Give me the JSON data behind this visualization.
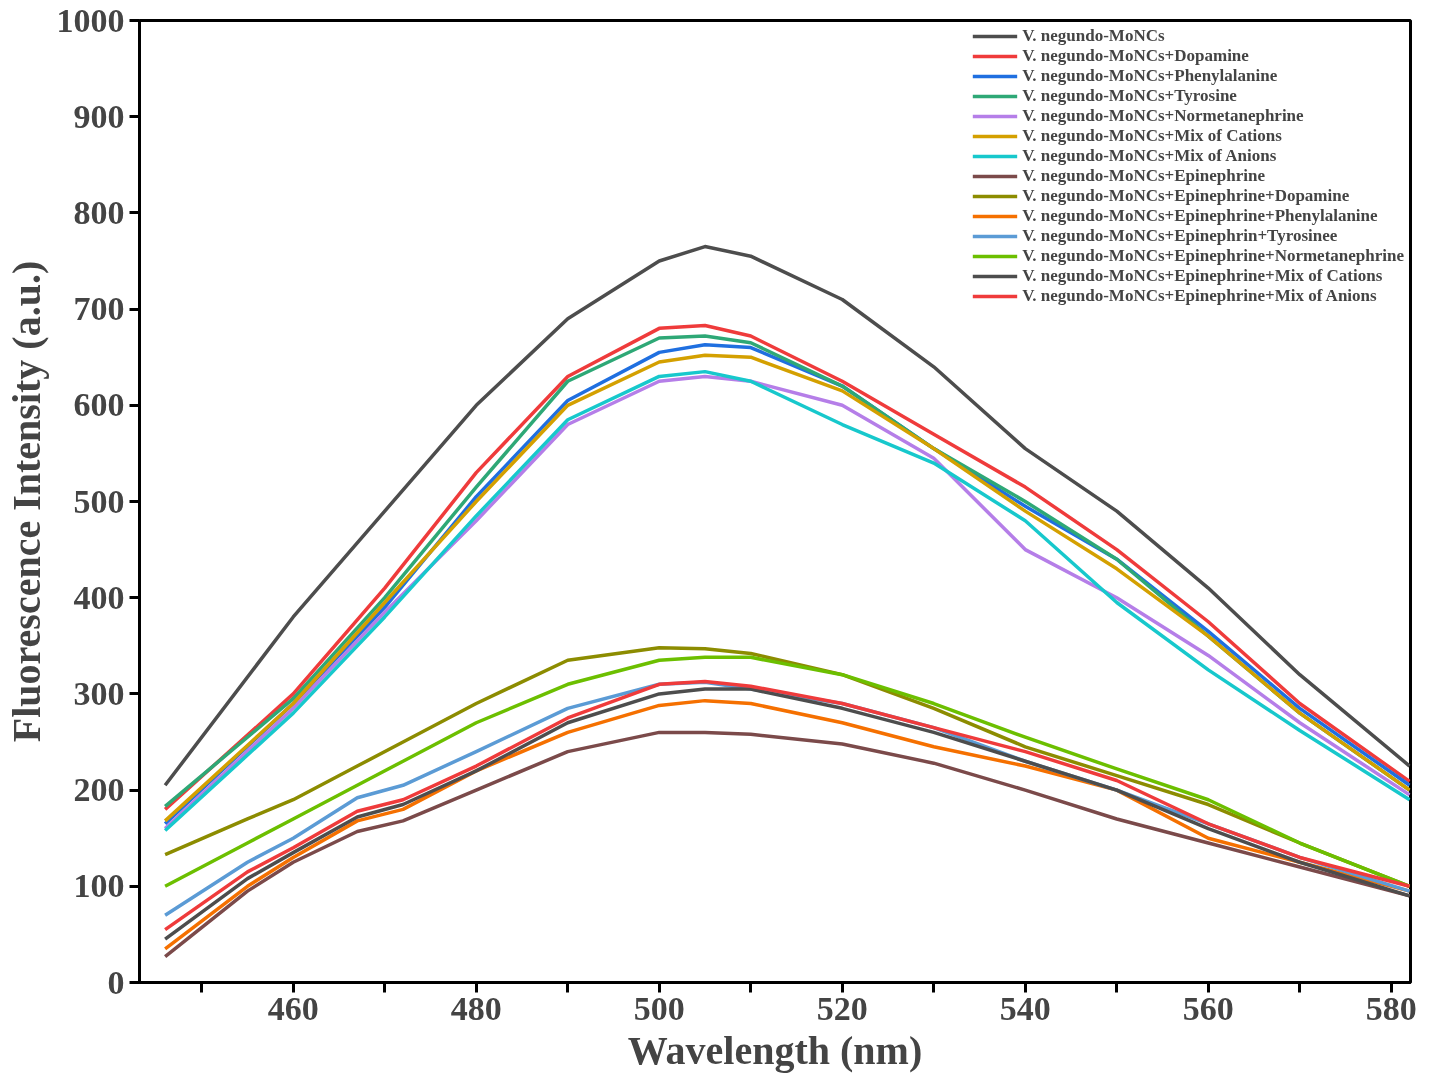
{
  "chart_data": {
    "type": "line",
    "xlabel": "Wavelength (nm)",
    "ylabel": "Fluorescence Intensity (a.u.)",
    "xlim": [
      443.2,
      582.1
    ],
    "ylim": [
      0,
      1000
    ],
    "xticks": [
      {
        "value": 450,
        "label": null
      },
      460,
      {
        "value": 470,
        "label": null
      },
      480,
      {
        "value": 490,
        "label": null
      },
      500,
      {
        "value": 510,
        "label": null
      },
      520,
      {
        "value": 530,
        "label": null
      },
      540,
      {
        "value": 550,
        "label": null
      },
      560,
      {
        "value": 570,
        "label": null
      },
      580
    ],
    "yticks": [
      0,
      100,
      200,
      300,
      400,
      500,
      600,
      700,
      800,
      900,
      1000
    ],
    "grid": false,
    "legend": "top right",
    "marker": "none",
    "line_style": "solid",
    "series": [
      {
        "name": "V. negundo-MoNCs",
        "color": "#4d4d4d",
        "x": [
          446,
          460,
          470,
          480,
          490,
          500,
          505,
          510,
          520,
          530,
          540,
          550,
          560,
          570,
          582
        ],
        "values": [
          205,
          380,
          490,
          600,
          690,
          750,
          765,
          755,
          710,
          640,
          555,
          490,
          410,
          320,
          225
        ]
      },
      {
        "name": "V. negundo-MoNCs+Dopamine",
        "color": "#ef3b3b",
        "x": [
          446,
          460,
          470,
          480,
          490,
          500,
          505,
          510,
          520,
          530,
          540,
          550,
          560,
          570,
          582
        ],
        "values": [
          180,
          300,
          410,
          530,
          630,
          680,
          683,
          672,
          625,
          570,
          515,
          450,
          375,
          290,
          209
        ]
      },
      {
        "name": "V. negundo-MoNCs+Phenylalanine",
        "color": "#1f6fe0",
        "x": [
          446,
          460,
          470,
          480,
          490,
          500,
          505,
          510,
          520,
          530,
          540,
          550,
          560,
          570,
          582
        ],
        "values": [
          165,
          290,
          390,
          505,
          605,
          655,
          663,
          660,
          620,
          555,
          495,
          440,
          365,
          285,
          205
        ]
      },
      {
        "name": "V. negundo-MoNCs+Tyrosine",
        "color": "#2ea876",
        "x": [
          446,
          460,
          470,
          480,
          490,
          500,
          505,
          510,
          520,
          530,
          540,
          550,
          560,
          570,
          582
        ],
        "values": [
          183,
          295,
          400,
          515,
          625,
          670,
          672,
          665,
          620,
          555,
          500,
          440,
          360,
          280,
          200
        ]
      },
      {
        "name": "V. negundo-MoNCs+Normetanephrine",
        "color": "#b57ee8",
        "x": [
          446,
          460,
          470,
          480,
          490,
          500,
          505,
          510,
          520,
          530,
          540,
          550,
          560,
          570,
          582
        ],
        "values": [
          160,
          285,
          385,
          480,
          580,
          625,
          630,
          625,
          600,
          545,
          450,
          400,
          340,
          270,
          195
        ]
      },
      {
        "name": "V. negundo-MoNCs+Mix of Cations",
        "color": "#d4a000",
        "x": [
          446,
          460,
          470,
          480,
          490,
          500,
          505,
          510,
          520,
          530,
          540,
          550,
          560,
          570,
          582
        ],
        "values": [
          168,
          290,
          395,
          500,
          600,
          645,
          652,
          650,
          615,
          555,
          490,
          430,
          360,
          280,
          200
        ]
      },
      {
        "name": "V. negundo-MoNCs+Mix of Anions",
        "color": "#17c8cc",
        "x": [
          446,
          460,
          470,
          480,
          490,
          500,
          505,
          510,
          520,
          530,
          540,
          550,
          560,
          570,
          582
        ],
        "values": [
          158,
          280,
          380,
          485,
          585,
          630,
          635,
          625,
          580,
          540,
          480,
          395,
          325,
          262,
          190
        ]
      },
      {
        "name": "V. negundo-MoNCs+Epinephrine",
        "color": "#7b4a4a",
        "x": [
          446,
          455,
          460,
          467,
          472,
          480,
          490,
          500,
          505,
          510,
          520,
          530,
          540,
          550,
          560,
          570,
          582
        ],
        "values": [
          27,
          95,
          125,
          157,
          168,
          200,
          240,
          260,
          260,
          258,
          248,
          228,
          200,
          170,
          145,
          120,
          90
        ]
      },
      {
        "name": "V. negundo-MoNCs+Epinephrine+Dopamine",
        "color": "#8c8c00",
        "x": [
          446,
          455,
          460,
          467,
          472,
          480,
          490,
          500,
          505,
          510,
          520,
          530,
          540,
          550,
          560,
          570,
          582
        ],
        "values": [
          133,
          170,
          190,
          225,
          250,
          290,
          335,
          348,
          347,
          342,
          320,
          285,
          245,
          215,
          185,
          145,
          100
        ]
      },
      {
        "name": "V. negundo-MoNCs+Epinephrine+Phenylalanine",
        "color": "#f57000",
        "x": [
          446,
          455,
          460,
          467,
          472,
          480,
          490,
          500,
          505,
          510,
          520,
          530,
          540,
          550,
          560,
          570,
          582
        ],
        "values": [
          35,
          100,
          130,
          168,
          180,
          220,
          260,
          288,
          293,
          290,
          270,
          245,
          225,
          200,
          150,
          125,
          95
        ]
      },
      {
        "name": "V. negundo-MoNCs+Epinephrin+Tyrosinee",
        "color": "#5b9bd5",
        "x": [
          446,
          455,
          460,
          467,
          472,
          480,
          490,
          500,
          505,
          510,
          520,
          530,
          540,
          550,
          560,
          570,
          582
        ],
        "values": [
          70,
          125,
          150,
          192,
          205,
          240,
          285,
          310,
          312,
          305,
          290,
          265,
          230,
          200,
          165,
          130,
          95
        ]
      },
      {
        "name": "V. negundo-MoNCs+Epinephrine+Normetanephrine",
        "color": "#6cbf00",
        "x": [
          446,
          455,
          460,
          467,
          472,
          480,
          490,
          500,
          505,
          510,
          520,
          530,
          540,
          550,
          560,
          570,
          582
        ],
        "values": [
          100,
          145,
          170,
          205,
          230,
          270,
          310,
          335,
          338,
          338,
          320,
          290,
          255,
          222,
          190,
          145,
          100
        ]
      },
      {
        "name": "V. negundo-MoNCs+Epinephrine+Mix of Cations",
        "color": "#4d4d4d",
        "x": [
          446,
          455,
          460,
          467,
          472,
          480,
          490,
          500,
          505,
          510,
          520,
          530,
          540,
          550,
          560,
          570,
          582
        ],
        "values": [
          45,
          108,
          135,
          172,
          185,
          220,
          270,
          300,
          305,
          305,
          285,
          260,
          230,
          200,
          160,
          125,
          90
        ]
      },
      {
        "name": "V. negundo-MoNCs+Epinephrine+Mix of Anions",
        "color": "#ef3b3b",
        "x": [
          446,
          455,
          460,
          467,
          472,
          480,
          490,
          500,
          505,
          510,
          520,
          530,
          540,
          550,
          560,
          570,
          582
        ],
        "values": [
          55,
          115,
          140,
          178,
          190,
          225,
          275,
          310,
          313,
          308,
          290,
          265,
          240,
          210,
          165,
          130,
          100
        ]
      }
    ]
  }
}
